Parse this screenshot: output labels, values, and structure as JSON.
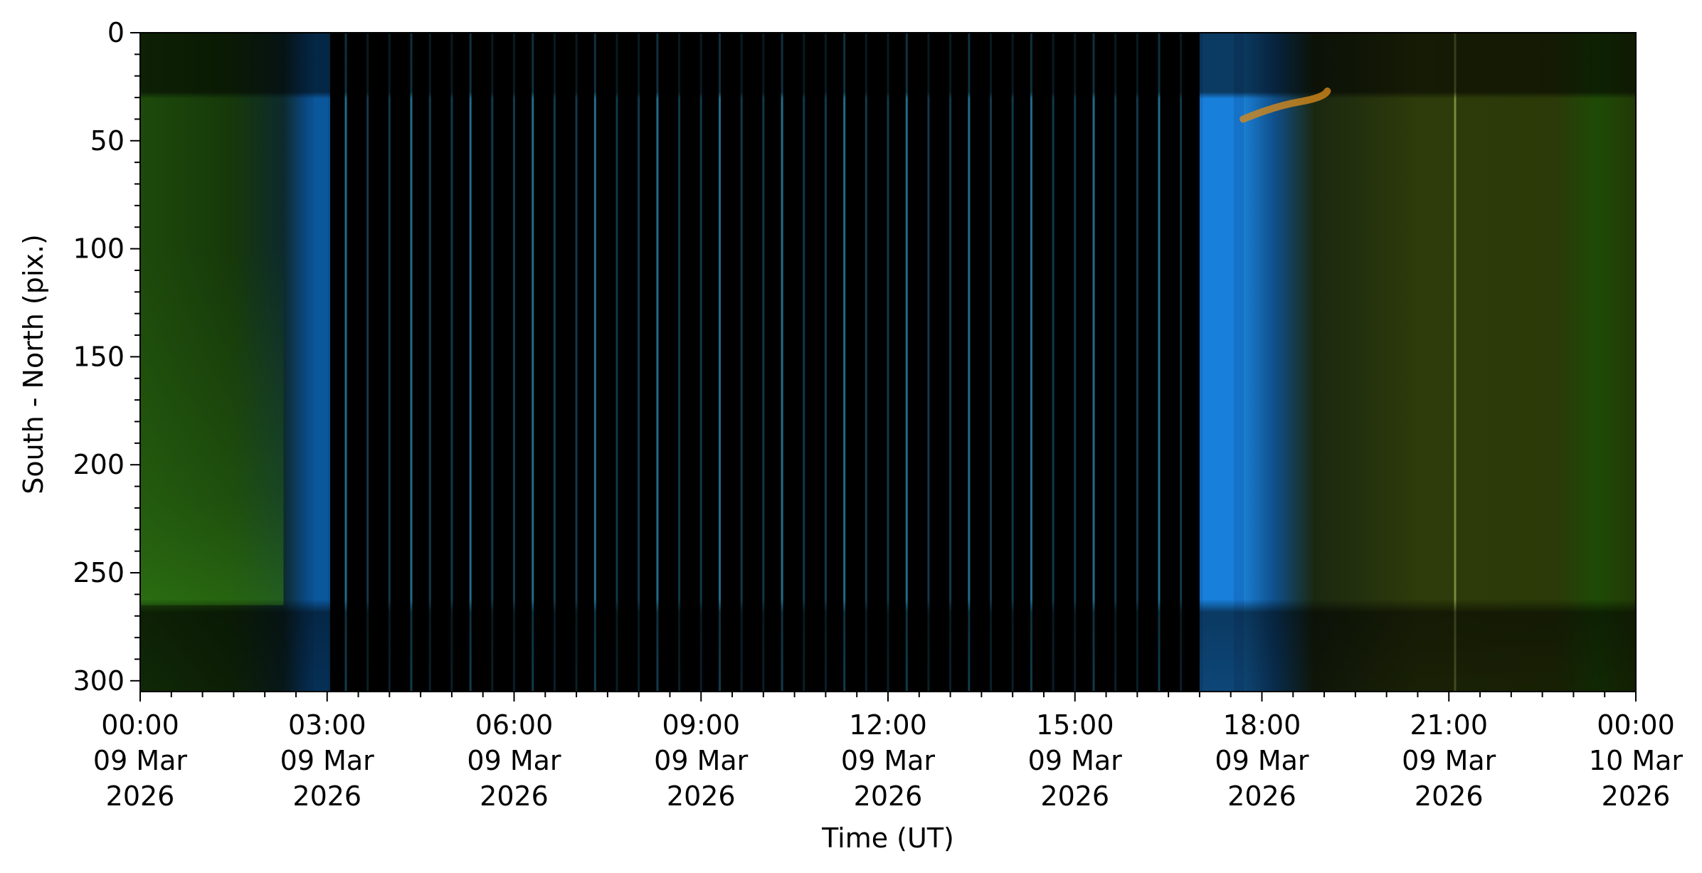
{
  "chart_data": {
    "type": "heatmap",
    "title": "",
    "xlabel": "Time (UT)",
    "ylabel": "South - North (pix.)",
    "x_range_hours": [
      0,
      24
    ],
    "ylim": [
      305,
      0
    ],
    "x_ticks": [
      {
        "hour": 0,
        "time": "00:00",
        "date": "09 Mar",
        "year": "2026"
      },
      {
        "hour": 3,
        "time": "03:00",
        "date": "09 Mar",
        "year": "2026"
      },
      {
        "hour": 6,
        "time": "06:00",
        "date": "09 Mar",
        "year": "2026"
      },
      {
        "hour": 9,
        "time": "09:00",
        "date": "09 Mar",
        "year": "2026"
      },
      {
        "hour": 12,
        "time": "12:00",
        "date": "09 Mar",
        "year": "2026"
      },
      {
        "hour": 15,
        "time": "15:00",
        "date": "09 Mar",
        "year": "2026"
      },
      {
        "hour": 18,
        "time": "18:00",
        "date": "09 Mar",
        "year": "2026"
      },
      {
        "hour": 21,
        "time": "21:00",
        "date": "09 Mar",
        "year": "2026"
      },
      {
        "hour": 24,
        "time": "00:00",
        "date": "10 Mar",
        "year": "2026"
      }
    ],
    "x_minor_step_hours": 0.5,
    "y_ticks": [
      0,
      50,
      100,
      150,
      200,
      250,
      300
    ],
    "y_minor_step": 10,
    "regions": [
      {
        "start_h": 0.0,
        "end_h": 2.7,
        "color": "#1c4a0a",
        "description": "green aurora emission"
      },
      {
        "start_h": 2.7,
        "end_h": 3.05,
        "color": "#0b4f8f",
        "description": "twilight edge"
      },
      {
        "start_h": 3.05,
        "end_h": 17.0,
        "color": "#000000",
        "description": "daylight / dark"
      },
      {
        "start_h": 17.0,
        "end_h": 17.7,
        "color": "#1672c8",
        "description": "twilight edge"
      },
      {
        "start_h": 17.7,
        "end_h": 24.0,
        "color": "#2a3808",
        "description": "green aurora emission"
      }
    ],
    "vertical_streaks_hours": [
      3.3,
      3.65,
      4.0,
      4.35,
      4.65,
      5.0,
      5.3,
      5.65,
      6.0,
      6.3,
      6.65,
      7.0,
      7.3,
      7.65,
      8.0,
      8.3,
      8.65,
      9.0,
      9.3,
      9.65,
      10.0,
      10.3,
      10.65,
      11.0,
      11.3,
      11.65,
      12.0,
      12.3,
      12.65,
      13.0,
      13.3,
      13.65,
      14.0,
      14.3,
      14.65,
      15.0,
      15.3,
      15.65,
      16.0,
      16.35,
      16.7
    ],
    "colors": {
      "background": "#ffffff",
      "axes": "#000000",
      "streak": "#2c8fb8",
      "orange_arc": "#d4881c"
    }
  }
}
